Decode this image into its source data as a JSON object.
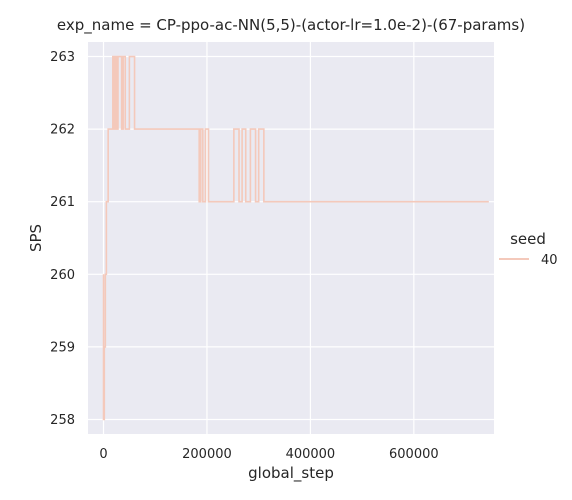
{
  "chart_data": {
    "type": "line",
    "title": "exp_name = CP-ppo-ac-NN(5,5)-(actor-lr=1.0e-2)-(67-params)",
    "xlabel": "global_step",
    "ylabel": "SPS",
    "xlim": [
      -30000,
      755000
    ],
    "ylim": [
      257.8,
      263.2
    ],
    "xticks": [
      0,
      200000,
      400000,
      600000
    ],
    "xtick_labels": [
      "0",
      "200000",
      "400000",
      "600000"
    ],
    "yticks": [
      258,
      259,
      260,
      261,
      262,
      263
    ],
    "ytick_labels": [
      "258",
      "259",
      "260",
      "261",
      "262",
      "263"
    ],
    "grid": true,
    "legend": {
      "title": "seed",
      "placement": "right"
    },
    "series": [
      {
        "name": "40",
        "color": "#f4c9bb",
        "x": [
          0,
          0,
          1500,
          1500,
          3500,
          3500,
          5500,
          5500,
          9000,
          9000,
          18000,
          18000,
          20000,
          20000,
          22000,
          22000,
          25000,
          25000,
          28000,
          28000,
          35000,
          35000,
          38000,
          38000,
          42000,
          42000,
          50000,
          50000,
          60000,
          60000,
          185000,
          185000,
          188000,
          188000,
          192000,
          192000,
          197000,
          197000,
          203000,
          203000,
          252000,
          252000,
          262000,
          262000,
          268000,
          268000,
          275000,
          275000,
          284000,
          284000,
          294000,
          294000,
          300000,
          300000,
          310000,
          310000,
          745000
        ],
        "y": [
          260,
          258,
          258,
          259,
          259,
          260,
          260,
          261,
          261,
          262,
          262,
          263,
          263,
          262,
          262,
          263,
          263,
          262,
          262,
          263,
          263,
          262,
          262,
          263,
          263,
          262,
          262,
          263,
          263,
          262,
          262,
          261,
          261,
          262,
          262,
          261,
          261,
          262,
          262,
          261,
          261,
          262,
          262,
          261,
          261,
          262,
          262,
          261,
          261,
          262,
          262,
          261,
          261,
          262,
          262,
          261,
          261
        ]
      }
    ]
  }
}
